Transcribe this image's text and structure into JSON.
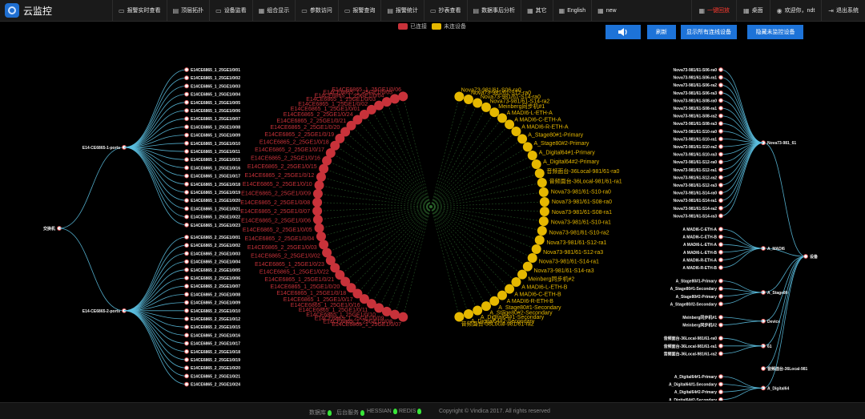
{
  "app": {
    "title": "云监控",
    "logo_icon": "camera-logo-icon"
  },
  "nav": {
    "items": [
      {
        "label": "报警实时查看",
        "icon": "monitor-icon"
      },
      {
        "label": "顶层拓扑",
        "icon": "chart-icon"
      },
      {
        "label": "设备监看",
        "icon": "monitor-icon"
      },
      {
        "label": "组合显示",
        "icon": "grid-icon"
      },
      {
        "label": "参数访问",
        "icon": "monitor-icon"
      },
      {
        "label": "报警查询",
        "icon": "monitor-icon"
      },
      {
        "label": "报警统计",
        "icon": "chart-icon"
      },
      {
        "label": "抄表查看",
        "icon": "monitor-icon"
      },
      {
        "label": "数据事后分析",
        "icon": "chart-icon"
      },
      {
        "label": "其它",
        "icon": "grid-icon"
      },
      {
        "label": "English",
        "icon": "grid-icon"
      },
      {
        "label": "new",
        "icon": "grid-icon"
      }
    ],
    "right": [
      {
        "label": "一键回放",
        "icon": "grid-icon",
        "highlight": true
      },
      {
        "label": "桌面",
        "icon": "grid-icon"
      },
      {
        "label": "欢迎你，ndt",
        "icon": "user-icon"
      },
      {
        "label": "退出系统",
        "icon": "exit-icon"
      }
    ]
  },
  "legend": {
    "items": [
      {
        "label": "已连接",
        "color": "#c8323a"
      },
      {
        "label": "未连设备",
        "color": "#e6b800"
      }
    ]
  },
  "buttons": {
    "sound_icon": "speaker-icon",
    "refresh": "刷新",
    "show_all": "显示所有连线设备",
    "hide_unmonitored": "隐藏未监控设备"
  },
  "tree_left": {
    "root": "交换机",
    "groups": [
      {
        "name": "E14-CE6865-1-ports",
        "leaves": [
          "E14CE6865_1_25GE1/0/01",
          "E14CE6865_1_25GE1/0/02",
          "E14CE6865_1_25GE1/0/03",
          "E14CE6865_1_25GE1/0/04",
          "E14CE6865_1_25GE1/0/05",
          "E14CE6865_1_25GE1/0/06",
          "E14CE6865_1_25GE1/0/07",
          "E14CE6865_1_25GE1/0/08",
          "E14CE6865_1_25GE1/0/09",
          "E14CE6865_1_25GE1/0/10",
          "E14CE6865_1_25GE1/0/11",
          "E14CE6865_1_25GE1/0/15",
          "E14CE6865_1_25GE1/0/16",
          "E14CE6865_1_25GE1/0/17",
          "E14CE6865_1_25GE1/0/18",
          "E14CE6865_1_25GE1/0/19",
          "E14CE6865_1_25GE1/0/20",
          "E14CE6865_1_25GE1/0/21",
          "E14CE6865_1_25GE1/0/22",
          "E14CE6865_1_25GE1/0/23"
        ]
      },
      {
        "name": "E14-CE6865-2-ports",
        "leaves": [
          "E14CE6865_2_25GE1/0/01",
          "E14CE6865_2_25GE1/0/02",
          "E14CE6865_2_25GE1/0/03",
          "E14CE6865_2_25GE1/0/04",
          "E14CE6865_2_25GE1/0/05",
          "E14CE6865_2_25GE1/0/06",
          "E14CE6865_2_25GE1/0/07",
          "E14CE6865_2_25GE1/0/08",
          "E14CE6865_2_25GE1/0/09",
          "E14CE6865_2_25GE1/0/10",
          "E14CE6865_2_25GE1/0/12",
          "E14CE6865_2_25GE1/0/15",
          "E14CE6865_2_25GE1/0/16",
          "E14CE6865_2_25GE1/0/17",
          "E14CE6865_2_25GE1/0/18",
          "E14CE6865_2_25GE1/0/19",
          "E14CE6865_2_25GE1/0/20",
          "E14CE6865_2_25GE1/0/21",
          "E14CE6865_2_25GE1/0/24"
        ]
      }
    ]
  },
  "tree_right": {
    "root": "设备",
    "groups": [
      {
        "name": "Nova73-981_61",
        "leaves": [
          "Nova73-981/61-S06-ra0",
          "Nova73-981/61-S06-ra1",
          "Nova73-981/61-S06-ra2",
          "Nova73-981/61-S06-ra3",
          "Nova73-981/61-S08-ra0",
          "Nova73-981/61-S08-ra1",
          "Nova73-981/61-S08-ra2",
          "Nova73-981/61-S08-ra3",
          "Nova73-981/61-S10-ra0",
          "Nova73-981/61-S10-ra1",
          "Nova73-981/61-S10-ra2",
          "Nova73-981/61-S10-ra3",
          "Nova73-981/61-S12-ra0",
          "Nova73-981/61-S12-ra1",
          "Nova73-981/61-S12-ra2",
          "Nova73-981/61-S12-ra3",
          "Nova73-981/61-S14-ra0",
          "Nova73-981/61-S14-ra1",
          "Nova73-981/61-S14-ra2",
          "Nova73-981/61-S14-ra3"
        ]
      },
      {
        "name": "A_MADI6",
        "leaves": [
          "A MADI6-C-ETH-A",
          "A MADI6-C-ETH-B",
          "A MADI6-L-ETH-A",
          "A MADI6-L-ETH-B",
          "A MADI6-R-ETH-A",
          "A MADI6-R-ETH-B"
        ]
      },
      {
        "name": "A_Stage80",
        "leaves": [
          "A_Stage80#1-Primary",
          "A_Stage80#1-Secondary",
          "A_Stage80#2-Primary",
          "A_Stage80#2-Secondary"
        ]
      },
      {
        "name": "Device",
        "leaves": [
          "Meinberg同步机#1",
          "Meinberg同步机#2"
        ]
      },
      {
        "name": "61",
        "leaves": [
          "音频面台-36Local-981/61-ra0",
          "音频面台-36Local-981/61-ra1",
          "音频面台-36Local-981/61-ra2"
        ]
      },
      {
        "name": "音频面台-36Local-981",
        "leaves": []
      },
      {
        "name": "A_Digital64",
        "leaves": [
          "A_Digital64#1-Primary",
          "A_Digital64#1-Secondary",
          "A_Digital64#2-Primary",
          "A_Digital64#2-Secondary"
        ]
      }
    ]
  },
  "ring": {
    "center_label": "",
    "red_nodes": [
      "E14CE6865_1_25GE1/0/07",
      "E14CE6865_1_25GE1/0/08",
      "E14CE6865_1_25GE1/0/09",
      "E14CE6865_1_25GE1/0/10",
      "E14CE6865_1_25GE1/0/11",
      "E14CE6865_1_25GE1/0/16",
      "E14CE6865_1_25GE1/0/17",
      "E14CE6865_1_25GE1/0/18",
      "E14CE6865_1_25GE1/0/20",
      "E14CE6865_1_25GE1/0/21",
      "E14CE6865_1_25GE1/0/22",
      "E14CE6865_1_25GE1/0/23",
      "E14CE6865_2_25GE1/0/02",
      "E14CE6865_2_25GE1/0/03",
      "E14CE6865_2_25GE1/0/04",
      "E14CE6865_2_25GE1/0/05",
      "E14CE6865_2_25GE1/0/06",
      "E14CE6865_2_25GE1/0/07",
      "E14CE6865_2_25GE1/0/08",
      "E14CE6865_2_25GE1/0/09",
      "E14CE6865_2_25GE1/0/10",
      "E14CE6865_2_25GE1/0/12",
      "E14CE6865_2_25GE1/0/15",
      "E14CE6865_2_25GE1/0/16",
      "E14CE6865_2_25GE1/0/17",
      "E14CE6865_2_25GE1/0/18",
      "E14CE6865_2_25GE1/0/19",
      "E14CE6865_2_25GE1/0/20",
      "E14CE6865_2_25GE1/0/21",
      "E14CE6865_2_25GE1/0/24",
      "E14CE6865_1_25GE1/0/01",
      "E14CE6865_1_25GE1/0/02",
      "E14CE6865_1_25GE1/0/03",
      "E14CE6865_1_25GE1/0/04",
      "E14CE6865_1_25GE1/0/05",
      "E14CE6865_1_25GE1/0/06"
    ],
    "yellow_nodes": [
      "Nova73-981/61-S06-ra0",
      "Nova73-981/61-S12-ra0",
      "Nova73-981/61-S14-ra0",
      "Nova73-981/61-S14-ra2",
      "Meinberg同步机#1",
      "A MADI6-L-ETH-A",
      "A MADI6-C-ETH-A",
      "A MADI6-R-ETH-A",
      "A_Stage80#1-Primary",
      "A_Stage80#2-Primary",
      "A_Digital64#1-Primary",
      "A_Digital64#2-Primary",
      "音频面台-36Local-981/61-ra0",
      "音频面台-36Local-981/61-ra1",
      "Nova73-981/61-S10-ra0",
      "Nova73-981/61-S08-ra0",
      "Nova73-981/61-S08-ra1",
      "Nova73-981/61-S10-ra1",
      "Nova73-981/61-S10-ra2",
      "Nova73-981/61-S12-ra1",
      "Nova73-981/61-S12-ra3",
      "Nova73-981/61-S14-ra1",
      "Nova73-981/61-S14-ra3",
      "Meinberg同步机#2",
      "A MADI6-L-ETH-B",
      "A MADI6-C-ETH-B",
      "A MADI6-R-ETH-B",
      "A_Stage80#1-Secondary",
      "A_Stage80#2-Secondary",
      "A_Digital64#1-Secondary",
      "A_Digital64#2-Secondary",
      "音频面台-36Local-981/61-ra2"
    ]
  },
  "footer": {
    "db": "数据库",
    "service": "后台服务",
    "hessian": "HESSIAN",
    "redis": "REDIS",
    "copyright": "Copyright © Vindica 2017. All rights reserved"
  },
  "colors": {
    "link": "#5bbfe0",
    "node_fill": "#ffffff",
    "node_stroke": "#e06060",
    "red": "#c8323a",
    "yellow": "#e6b800",
    "ring_line": "#2f6b2f"
  }
}
